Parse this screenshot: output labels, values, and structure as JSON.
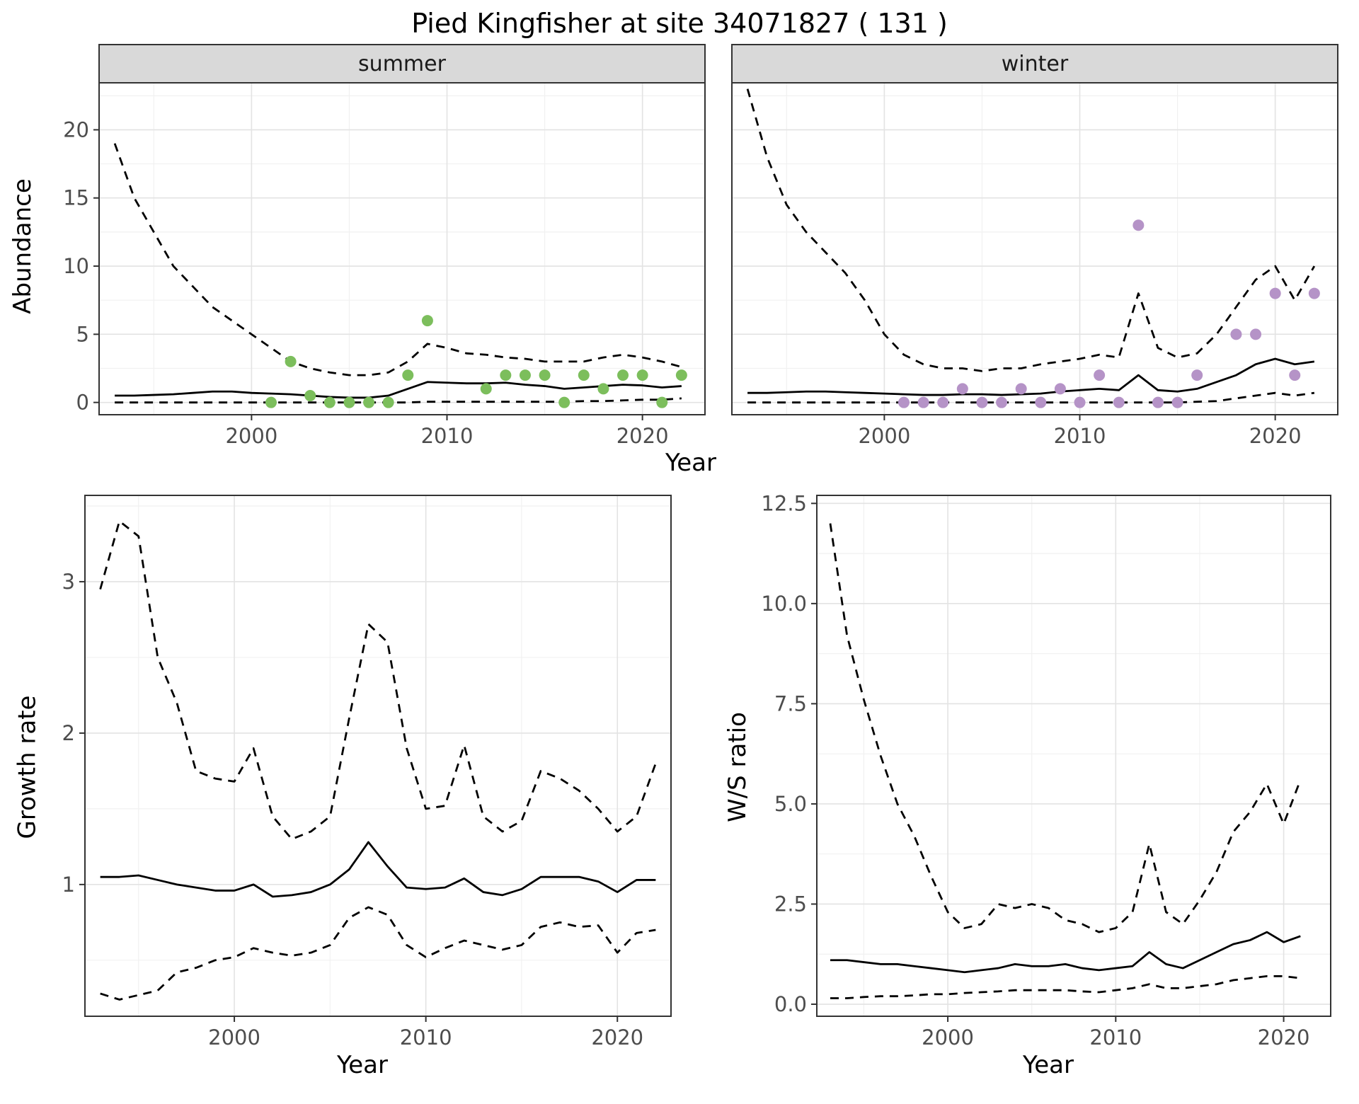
{
  "page": {
    "title": "Pied Kingfisher at site 34071827 ( 131 )"
  },
  "labels": {
    "abundance_y": "Abundance",
    "top_x": "Year",
    "growth_y": "Growth rate",
    "growth_x": "Year",
    "ws_y": "W/S ratio",
    "ws_x": "Year"
  },
  "colors": {
    "line": "#000000",
    "summer_points": "#7cbe5c",
    "winter_points": "#b593c7",
    "strip_bg": "#d9d9d9",
    "strip_text": "#1a1a1a",
    "grid_major": "#e3e3e3",
    "grid_minor": "#f1f1f1",
    "panel_border": "#333333",
    "tick_text": "#4d4d4d"
  },
  "chart_data": [
    {
      "id": "abundance-summer",
      "type": "line",
      "facet_label": "summer",
      "xlim": [
        1992.2,
        2023.2
      ],
      "ylim": [
        -0.9,
        23.5
      ],
      "xticks": [
        2000,
        2010,
        2020
      ],
      "yticks": [
        0,
        5,
        10,
        15,
        20
      ],
      "xticks_minor": [
        1995,
        2005,
        2015
      ],
      "yticks_minor": [
        2.5,
        7.5,
        12.5,
        17.5,
        22.5
      ],
      "show_ytick_labels": true,
      "series": [
        {
          "name": "upper-ci",
          "kind": "line",
          "dash": true,
          "x": [
            1993,
            1994,
            1995,
            1996,
            1997,
            1998,
            1999,
            2000,
            2001,
            2002,
            2003,
            2004,
            2005,
            2006,
            2007,
            2008,
            2009,
            2010,
            2011,
            2012,
            2013,
            2014,
            2015,
            2016,
            2017,
            2018,
            2019,
            2020,
            2021,
            2022
          ],
          "y": [
            19,
            15,
            12.5,
            10,
            8.5,
            7,
            6,
            5,
            4,
            3,
            2.5,
            2.2,
            2,
            2,
            2.2,
            3,
            4.3,
            4,
            3.6,
            3.5,
            3.3,
            3.2,
            3,
            3,
            3,
            3.3,
            3.5,
            3.3,
            3,
            2.6
          ]
        },
        {
          "name": "estimate",
          "kind": "line",
          "dash": false,
          "x": [
            1993,
            1994,
            1995,
            1996,
            1997,
            1998,
            1999,
            2000,
            2001,
            2002,
            2003,
            2004,
            2005,
            2006,
            2007,
            2008,
            2009,
            2010,
            2011,
            2012,
            2013,
            2014,
            2015,
            2016,
            2017,
            2018,
            2019,
            2020,
            2021,
            2022
          ],
          "y": [
            0.5,
            0.5,
            0.55,
            0.6,
            0.7,
            0.8,
            0.8,
            0.7,
            0.65,
            0.6,
            0.5,
            0.4,
            0.35,
            0.35,
            0.5,
            1.0,
            1.5,
            1.45,
            1.4,
            1.4,
            1.45,
            1.3,
            1.2,
            1.0,
            1.1,
            1.2,
            1.3,
            1.25,
            1.1,
            1.2
          ]
        },
        {
          "name": "lower-ci",
          "kind": "line",
          "dash": true,
          "x": [
            1993,
            1994,
            1995,
            1996,
            1997,
            1998,
            1999,
            2000,
            2001,
            2002,
            2003,
            2004,
            2005,
            2006,
            2007,
            2008,
            2009,
            2010,
            2011,
            2012,
            2013,
            2014,
            2015,
            2016,
            2017,
            2018,
            2019,
            2020,
            2021,
            2022
          ],
          "y": [
            0,
            0,
            0,
            0,
            0,
            0,
            0,
            0,
            0,
            0,
            0,
            0,
            0,
            0,
            0,
            0,
            0.05,
            0.05,
            0.05,
            0.05,
            0.05,
            0.05,
            0.05,
            0.05,
            0.1,
            0.1,
            0.15,
            0.2,
            0.2,
            0.3
          ]
        },
        {
          "name": "observations",
          "kind": "points",
          "color": "#7cbe5c",
          "x": [
            2001,
            2002,
            2003,
            2004,
            2005,
            2006,
            2007,
            2008,
            2009,
            2012,
            2013,
            2014,
            2015,
            2016,
            2017,
            2018,
            2019,
            2020,
            2021,
            2022
          ],
          "y": [
            0,
            3,
            0.5,
            0,
            0,
            0,
            0,
            2,
            6,
            1,
            2,
            2,
            2,
            0,
            2,
            1,
            2,
            2,
            0,
            2
          ]
        }
      ]
    },
    {
      "id": "abundance-winter",
      "type": "line",
      "facet_label": "winter",
      "xlim": [
        1992.2,
        2023.2
      ],
      "ylim": [
        -0.9,
        23.5
      ],
      "xticks": [
        2000,
        2010,
        2020
      ],
      "yticks": [
        0,
        5,
        10,
        15,
        20
      ],
      "xticks_minor": [
        1995,
        2005,
        2015
      ],
      "yticks_minor": [
        2.5,
        7.5,
        12.5,
        17.5,
        22.5
      ],
      "show_ytick_labels": false,
      "series": [
        {
          "name": "upper-ci",
          "kind": "line",
          "dash": true,
          "x": [
            1993,
            1994,
            1995,
            1996,
            1997,
            1998,
            1999,
            2000,
            2001,
            2002,
            2003,
            2004,
            2005,
            2006,
            2007,
            2008,
            2009,
            2010,
            2011,
            2012,
            2013,
            2014,
            2015,
            2016,
            2017,
            2018,
            2019,
            2020,
            2021,
            2022
          ],
          "y": [
            23,
            18,
            14.5,
            12.5,
            11,
            9.5,
            7.5,
            5,
            3.5,
            2.8,
            2.5,
            2.5,
            2.3,
            2.5,
            2.5,
            2.8,
            3.0,
            3.2,
            3.5,
            3.3,
            8.0,
            4.0,
            3.3,
            3.6,
            5.0,
            7.0,
            9.0,
            10.0,
            7.5,
            10.0
          ]
        },
        {
          "name": "estimate",
          "kind": "line",
          "dash": false,
          "x": [
            1993,
            1994,
            1995,
            1996,
            1997,
            1998,
            1999,
            2000,
            2001,
            2002,
            2003,
            2004,
            2005,
            2006,
            2007,
            2008,
            2009,
            2010,
            2011,
            2012,
            2013,
            2014,
            2015,
            2016,
            2017,
            2018,
            2019,
            2020,
            2021,
            2022
          ],
          "y": [
            0.7,
            0.7,
            0.75,
            0.8,
            0.8,
            0.75,
            0.7,
            0.65,
            0.6,
            0.55,
            0.55,
            0.6,
            0.6,
            0.55,
            0.6,
            0.65,
            0.8,
            0.9,
            1.0,
            0.9,
            2.0,
            0.9,
            0.8,
            1.0,
            1.5,
            2.0,
            2.8,
            3.2,
            2.8,
            3.0
          ]
        },
        {
          "name": "lower-ci",
          "kind": "line",
          "dash": true,
          "x": [
            1993,
            1994,
            1995,
            1996,
            1997,
            1998,
            1999,
            2000,
            2001,
            2002,
            2003,
            2004,
            2005,
            2006,
            2007,
            2008,
            2009,
            2010,
            2011,
            2012,
            2013,
            2014,
            2015,
            2016,
            2017,
            2018,
            2019,
            2020,
            2021,
            2022
          ],
          "y": [
            0,
            0,
            0,
            0,
            0,
            0,
            0,
            0,
            0,
            0,
            0,
            0,
            0,
            0,
            0,
            0,
            0,
            0,
            0,
            0,
            0,
            0,
            0,
            0.05,
            0.1,
            0.3,
            0.5,
            0.7,
            0.5,
            0.7
          ]
        },
        {
          "name": "observations",
          "kind": "points",
          "color": "#b593c7",
          "x": [
            2001,
            2002,
            2003,
            2004,
            2005,
            2006,
            2007,
            2008,
            2009,
            2010,
            2011,
            2012,
            2013,
            2014,
            2015,
            2016,
            2018,
            2019,
            2020,
            2021,
            2022
          ],
          "y": [
            0,
            0,
            0,
            1,
            0,
            0,
            1,
            0,
            1,
            0,
            2,
            0,
            13,
            0,
            0,
            2,
            5,
            5,
            8,
            2,
            8
          ]
        }
      ]
    },
    {
      "id": "growth-rate",
      "type": "line",
      "facet_label": null,
      "xlim": [
        1992.2,
        2022.8
      ],
      "ylim": [
        0.13,
        3.57
      ],
      "xticks": [
        2000,
        2010,
        2020
      ],
      "yticks": [
        1,
        2,
        3
      ],
      "xticks_minor": [
        1995,
        2005,
        2015
      ],
      "yticks_minor": [
        0.5,
        1.5,
        2.5,
        3.5
      ],
      "show_ytick_labels": true,
      "series": [
        {
          "name": "upper-ci",
          "kind": "line",
          "dash": true,
          "x": [
            1993,
            1994,
            1995,
            1996,
            1997,
            1998,
            1999,
            2000,
            2001,
            2002,
            2003,
            2004,
            2005,
            2006,
            2007,
            2008,
            2009,
            2010,
            2011,
            2012,
            2013,
            2014,
            2015,
            2016,
            2017,
            2018,
            2019,
            2020,
            2021,
            2022
          ],
          "y": [
            2.95,
            3.4,
            3.3,
            2.5,
            2.2,
            1.75,
            1.7,
            1.68,
            1.9,
            1.45,
            1.3,
            1.35,
            1.45,
            2.1,
            2.72,
            2.6,
            1.9,
            1.5,
            1.52,
            1.92,
            1.45,
            1.35,
            1.42,
            1.75,
            1.7,
            1.62,
            1.5,
            1.35,
            1.45,
            1.8
          ]
        },
        {
          "name": "estimate",
          "kind": "line",
          "dash": false,
          "x": [
            1993,
            1994,
            1995,
            1996,
            1997,
            1998,
            1999,
            2000,
            2001,
            2002,
            2003,
            2004,
            2005,
            2006,
            2007,
            2008,
            2009,
            2010,
            2011,
            2012,
            2013,
            2014,
            2015,
            2016,
            2017,
            2018,
            2019,
            2020,
            2021,
            2022
          ],
          "y": [
            1.05,
            1.05,
            1.06,
            1.03,
            1.0,
            0.98,
            0.96,
            0.96,
            1.0,
            0.92,
            0.93,
            0.95,
            1.0,
            1.1,
            1.28,
            1.12,
            0.98,
            0.97,
            0.98,
            1.04,
            0.95,
            0.93,
            0.97,
            1.05,
            1.05,
            1.05,
            1.02,
            0.95,
            1.03,
            1.03
          ]
        },
        {
          "name": "lower-ci",
          "kind": "line",
          "dash": true,
          "x": [
            1993,
            1994,
            1995,
            1996,
            1997,
            1998,
            1999,
            2000,
            2001,
            2002,
            2003,
            2004,
            2005,
            2006,
            2007,
            2008,
            2009,
            2010,
            2011,
            2012,
            2013,
            2014,
            2015,
            2016,
            2017,
            2018,
            2019,
            2020,
            2021,
            2022
          ],
          "y": [
            0.28,
            0.24,
            0.27,
            0.3,
            0.42,
            0.45,
            0.5,
            0.52,
            0.58,
            0.55,
            0.53,
            0.55,
            0.6,
            0.78,
            0.85,
            0.8,
            0.6,
            0.52,
            0.58,
            0.63,
            0.6,
            0.57,
            0.6,
            0.72,
            0.75,
            0.72,
            0.73,
            0.55,
            0.68,
            0.7
          ]
        }
      ]
    },
    {
      "id": "ws-ratio",
      "type": "line",
      "facet_label": null,
      "xlim": [
        1992.2,
        2022.8
      ],
      "ylim": [
        -0.3,
        12.7
      ],
      "xticks": [
        2000,
        2010,
        2020
      ],
      "yticks": [
        0.0,
        2.5,
        5.0,
        7.5,
        10.0,
        12.5
      ],
      "ytick_format": "1dp",
      "xticks_minor": [
        1995,
        2005,
        2015
      ],
      "yticks_minor": [
        1.25,
        3.75,
        6.25,
        8.75,
        11.25
      ],
      "show_ytick_labels": true,
      "series": [
        {
          "name": "upper-ci",
          "kind": "line",
          "dash": true,
          "x": [
            1993,
            1994,
            1995,
            1996,
            1997,
            1998,
            1999,
            2000,
            2001,
            2002,
            2003,
            2004,
            2005,
            2006,
            2007,
            2008,
            2009,
            2010,
            2011,
            2012,
            2013,
            2014,
            2015,
            2016,
            2017,
            2018,
            2019,
            2020,
            2021
          ],
          "y": [
            12.0,
            9.2,
            7.6,
            6.2,
            5.0,
            4.2,
            3.2,
            2.3,
            1.9,
            2.0,
            2.5,
            2.4,
            2.5,
            2.4,
            2.1,
            2.0,
            1.8,
            1.9,
            2.3,
            4.0,
            2.3,
            2.0,
            2.6,
            3.3,
            4.3,
            4.8,
            5.5,
            4.5,
            5.6
          ]
        },
        {
          "name": "estimate",
          "kind": "line",
          "dash": false,
          "x": [
            1993,
            1994,
            1995,
            1996,
            1997,
            1998,
            1999,
            2000,
            2001,
            2002,
            2003,
            2004,
            2005,
            2006,
            2007,
            2008,
            2009,
            2010,
            2011,
            2012,
            2013,
            2014,
            2015,
            2016,
            2017,
            2018,
            2019,
            2020,
            2021
          ],
          "y": [
            1.1,
            1.1,
            1.05,
            1.0,
            1.0,
            0.95,
            0.9,
            0.85,
            0.8,
            0.85,
            0.9,
            1.0,
            0.95,
            0.95,
            1.0,
            0.9,
            0.85,
            0.9,
            0.95,
            1.3,
            1.0,
            0.9,
            1.1,
            1.3,
            1.5,
            1.6,
            1.8,
            1.55,
            1.7
          ]
        },
        {
          "name": "lower-ci",
          "kind": "line",
          "dash": true,
          "x": [
            1993,
            1994,
            1995,
            1996,
            1997,
            1998,
            1999,
            2000,
            2001,
            2002,
            2003,
            2004,
            2005,
            2006,
            2007,
            2008,
            2009,
            2010,
            2011,
            2012,
            2013,
            2014,
            2015,
            2016,
            2017,
            2018,
            2019,
            2020,
            2021
          ],
          "y": [
            0.15,
            0.15,
            0.18,
            0.2,
            0.2,
            0.22,
            0.25,
            0.25,
            0.28,
            0.3,
            0.32,
            0.35,
            0.35,
            0.35,
            0.35,
            0.32,
            0.3,
            0.35,
            0.4,
            0.5,
            0.4,
            0.4,
            0.45,
            0.5,
            0.6,
            0.65,
            0.7,
            0.7,
            0.65
          ]
        }
      ]
    }
  ]
}
